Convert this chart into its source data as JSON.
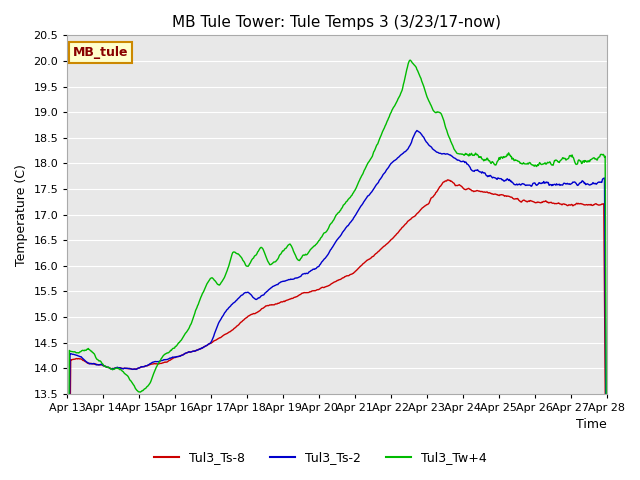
{
  "title": "MB Tule Tower: Tule Temps 3 (3/23/17-now)",
  "xlabel": "Time",
  "ylabel": "Temperature (C)",
  "ylim": [
    13.5,
    20.5
  ],
  "yticks": [
    13.5,
    14.0,
    14.5,
    15.0,
    15.5,
    16.0,
    16.5,
    17.0,
    17.5,
    18.0,
    18.5,
    19.0,
    19.5,
    20.0,
    20.5
  ],
  "xtick_labels": [
    "Apr 13",
    "Apr 14",
    "Apr 15",
    "Apr 16",
    "Apr 17",
    "Apr 18",
    "Apr 19",
    "Apr 20",
    "Apr 21",
    "Apr 22",
    "Apr 23",
    "Apr 24",
    "Apr 25",
    "Apr 26",
    "Apr 27",
    "Apr 28"
  ],
  "line_colors": {
    "red": "#cc0000",
    "blue": "#0000cc",
    "green": "#00bb00"
  },
  "legend_labels": [
    "Tul3_Ts-8",
    "Tul3_Ts-2",
    "Tul3_Tw+4"
  ],
  "inset_label": "MB_tule",
  "inset_bg": "#ffffcc",
  "inset_border": "#cc8800",
  "inset_text_color": "#880000",
  "figsize": [
    6.4,
    4.8
  ],
  "dpi": 100,
  "fig_bg": "#ffffff",
  "ax_bg": "#e8e8e8",
  "grid_color": "#ffffff",
  "title_fontsize": 11,
  "tick_fontsize": 8,
  "ylabel_fontsize": 9,
  "xlabel_fontsize": 9,
  "legend_fontsize": 9
}
